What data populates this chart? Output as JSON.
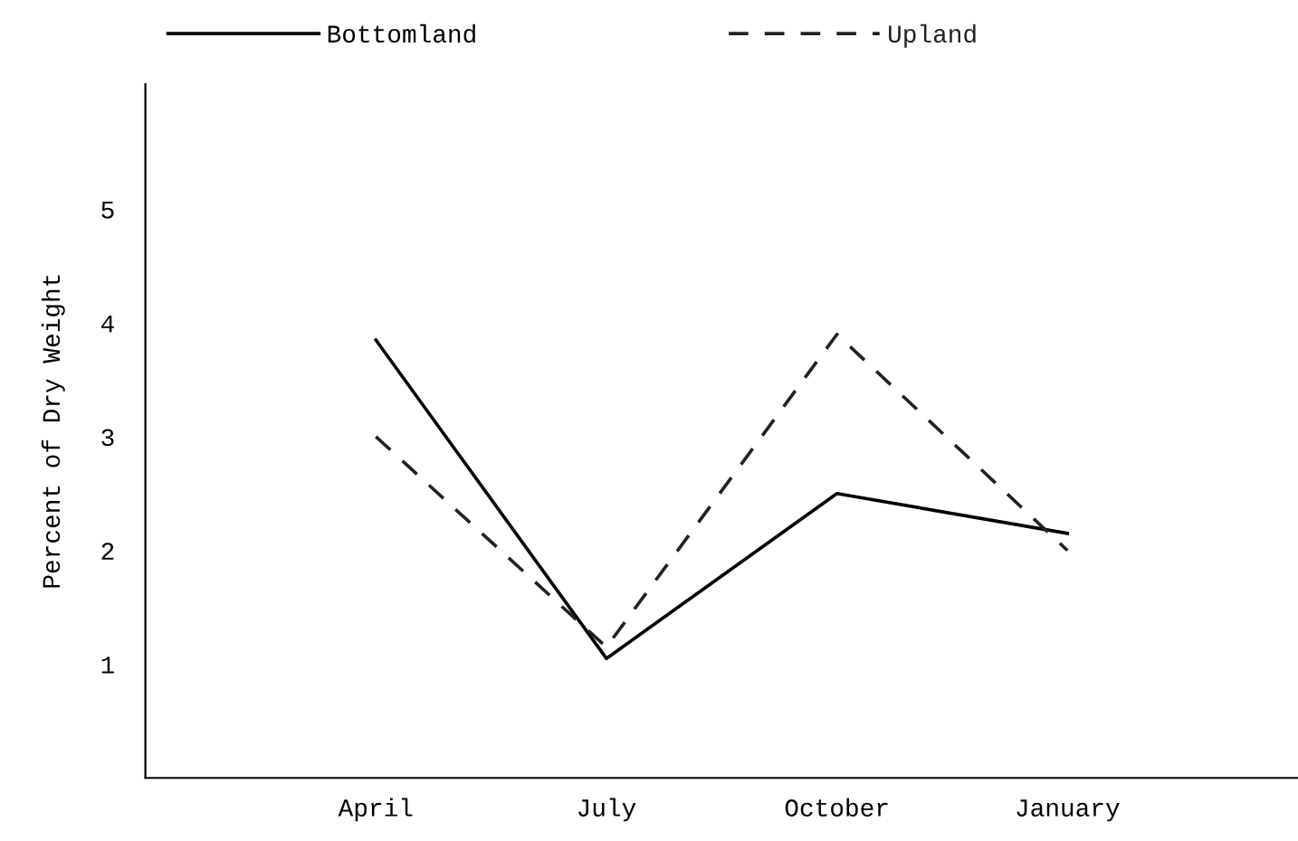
{
  "chart_data": {
    "type": "line",
    "ylabel": "Percent of Dry Weight",
    "categories": [
      "April",
      "July",
      "October",
      "January"
    ],
    "series": [
      {
        "name": "Bottomland",
        "color": "#000000",
        "line_style": "solid",
        "values": [
          3.85,
          1.05,
          2.5,
          2.15
        ]
      },
      {
        "name": "Upland",
        "color": "#222222",
        "line_style": "dashed",
        "values": [
          3.0,
          1.15,
          3.9,
          2.0
        ]
      }
    ],
    "ylim": [
      0,
      6.1
    ],
    "yticks": [
      1,
      2,
      3,
      4,
      5
    ],
    "grid": false,
    "legend": "top",
    "marker": "none"
  }
}
